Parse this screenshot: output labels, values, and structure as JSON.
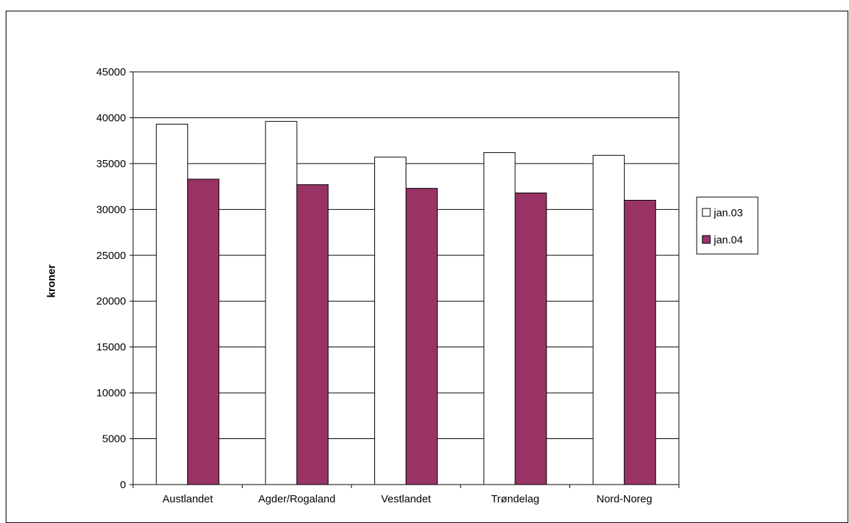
{
  "chart_data": {
    "type": "bar",
    "title": "",
    "xlabel": "",
    "ylabel": "kroner",
    "ylim": [
      0,
      45000
    ],
    "ytick_step": 5000,
    "grid": true,
    "legend_position": "right",
    "categories": [
      "Austlandet",
      "Agder/Rogaland",
      "Vestlandet",
      "Trøndelag",
      "Nord-Noreg"
    ],
    "series": [
      {
        "name": "jan.03",
        "color": "#ffffff",
        "values": [
          39300,
          39600,
          35700,
          36200,
          35900
        ]
      },
      {
        "name": "jan.04",
        "color": "#993366",
        "values": [
          33300,
          32700,
          32300,
          31800,
          31000
        ]
      }
    ]
  }
}
